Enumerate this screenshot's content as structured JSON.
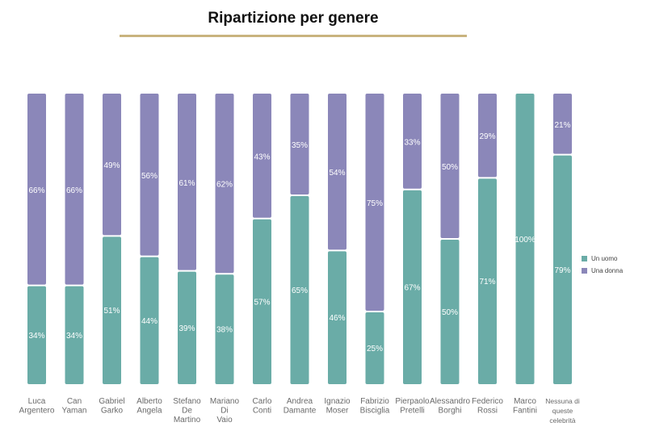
{
  "chart_data": {
    "type": "bar",
    "stacked": true,
    "normalized": true,
    "title": "Ripartizione per genere",
    "categories": [
      [
        "Luca",
        "Argentero"
      ],
      [
        "Can",
        "Yaman"
      ],
      [
        "Gabriel",
        "Garko"
      ],
      [
        "Alberto",
        "Angela"
      ],
      [
        "Stefano",
        "De",
        "Martino"
      ],
      [
        "Mariano",
        "Di",
        "Vaio"
      ],
      [
        "Carlo",
        "Conti"
      ],
      [
        "Andrea",
        "Damante"
      ],
      [
        "Ignazio",
        "Moser"
      ],
      [
        "Fabrizio",
        "Bisciglia"
      ],
      [
        "Pierpaolo",
        "Pretelli"
      ],
      [
        "Alessandro",
        "Borghi"
      ],
      [
        "Federico",
        "Rossi"
      ],
      [
        "Marco",
        "Fantini"
      ],
      [
        "Nessuna di",
        "queste",
        "celebrità"
      ]
    ],
    "series": [
      {
        "name": "Un uomo",
        "color": "#6aaca7",
        "values": [
          34,
          34,
          51,
          44,
          39,
          38,
          57,
          65,
          46,
          25,
          67,
          50,
          71,
          100,
          79
        ],
        "labels": [
          "34%",
          "34%",
          "51%",
          "44%",
          "39%",
          "38%",
          "57%",
          "65%",
          "46%",
          "25%",
          "67%",
          "50%",
          "71%",
          "100%",
          "79%"
        ]
      },
      {
        "name": "Una donna",
        "color": "#8b87b9",
        "values": [
          66,
          66,
          49,
          56,
          61,
          62,
          43,
          35,
          54,
          75,
          33,
          50,
          29,
          0,
          21
        ],
        "labels": [
          "66%",
          "66%",
          "49%",
          "56%",
          "61%",
          "62%",
          "43%",
          "35%",
          "54%",
          "75%",
          "33%",
          "50%",
          "29%",
          "",
          "21%"
        ]
      }
    ],
    "ylim": [
      0,
      100
    ],
    "legend_position": "right"
  }
}
